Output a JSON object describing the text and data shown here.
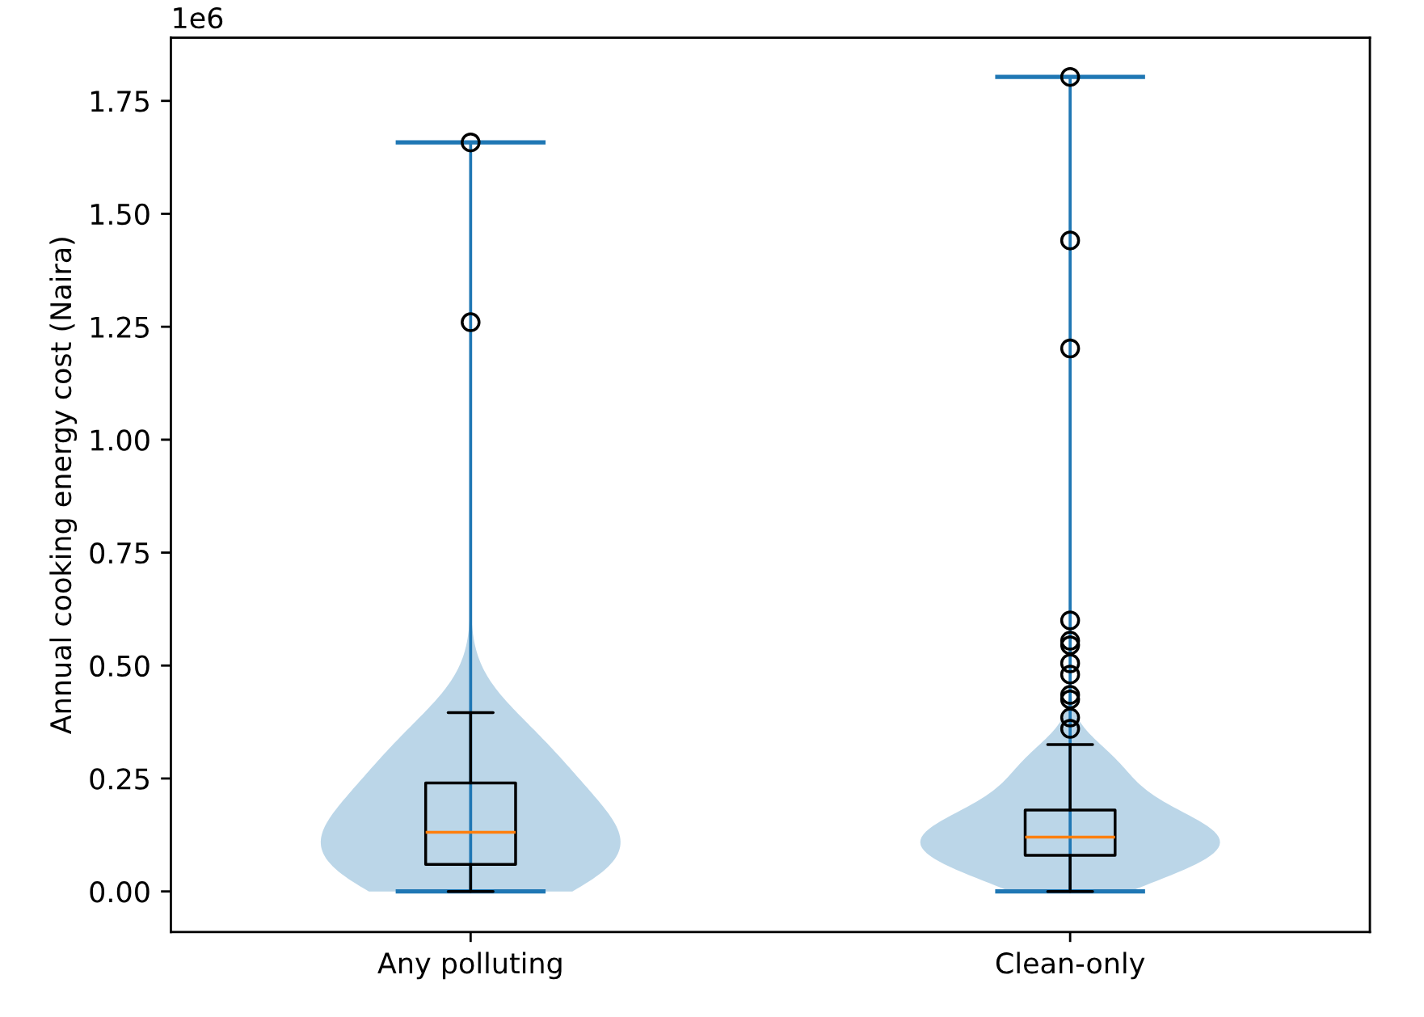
{
  "chart_data": {
    "type": "box",
    "categories": [
      "Any polluting",
      "Clean-only"
    ],
    "ylabel": "Annual cooking energy cost (Naira)",
    "annotations": [
      "1e6"
    ],
    "ylim": [
      -0.09,
      1.89
    ],
    "yticks": [
      {
        "value": 0,
        "label": "0.00"
      },
      {
        "value": 0.25,
        "label": "0.25"
      },
      {
        "value": 0.5,
        "label": "0.50"
      },
      {
        "value": 0.75,
        "label": "0.75"
      },
      {
        "value": 1.0,
        "label": "1.00"
      },
      {
        "value": 1.25,
        "label": "1.25"
      },
      {
        "value": 1.5,
        "label": "1.50"
      },
      {
        "value": 1.75,
        "label": "1.75"
      }
    ],
    "marker": "circle",
    "boxes": [
      {
        "low": 0,
        "q1": 0.06,
        "median": 0.131,
        "q3": 0.24,
        "high": 0.396,
        "outliers": [
          1.26,
          1.658
        ]
      },
      {
        "low": 0,
        "q1": 0.08,
        "median": 0.12,
        "q3": 0.18,
        "high": 0.325,
        "outliers": [
          0.36,
          0.385,
          0.425,
          0.435,
          0.48,
          0.505,
          0.545,
          0.555,
          0.6,
          1.202,
          1.441,
          1.803
        ]
      }
    ],
    "series": [
      {
        "type": "bar",
        "color": "#1f77b4",
        "base": [
          0,
          0
        ],
        "values": [
          1.658,
          1.803
        ]
      }
    ]
  }
}
